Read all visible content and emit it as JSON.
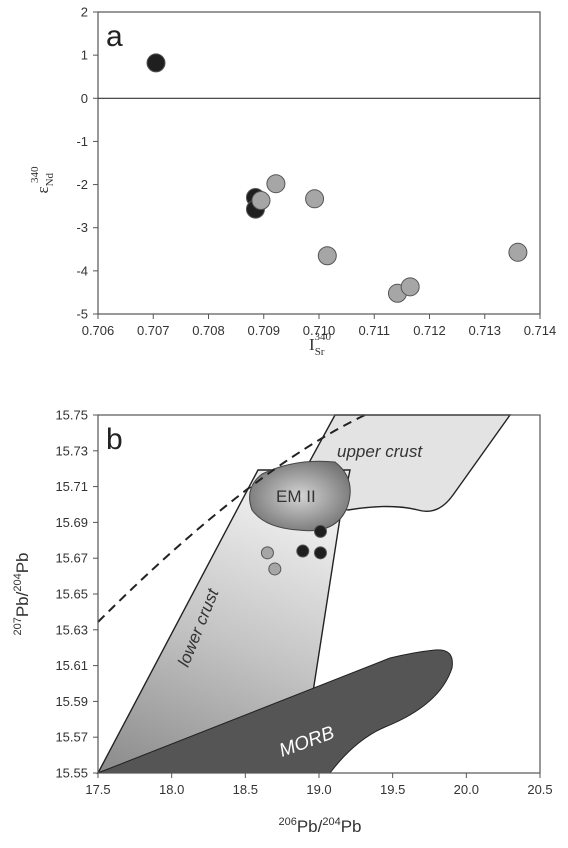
{
  "chart_data": [
    {
      "type": "scatter",
      "panel_label": "a",
      "xlabel": {
        "base": "I",
        "sub": "Sr",
        "sup": "340"
      },
      "ylabel": {
        "base": "ε",
        "sub": "Nd",
        "sup": "340"
      },
      "xlim": [
        0.706,
        0.714
      ],
      "ylim": [
        -5,
        2
      ],
      "xticks": [
        "0.706",
        "0.707",
        "0.708",
        "0.709",
        "0.710",
        "0.711",
        "0.712",
        "0.713",
        "0.714"
      ],
      "yticks": [
        "2",
        "1",
        "0",
        "-1",
        "-2",
        "-3",
        "-4",
        "-5"
      ],
      "reference_line_y": 0,
      "series": [
        {
          "color": "#1f1f1f",
          "points": [
            [
              0.70705,
              0.82
            ],
            [
              0.70885,
              -2.3
            ],
            [
              0.70885,
              -2.57
            ]
          ]
        },
        {
          "color": "#a6a6a6",
          "points": [
            [
              0.70895,
              -2.37
            ],
            [
              0.70922,
              -1.98
            ],
            [
              0.70992,
              -2.33
            ],
            [
              0.71015,
              -3.65
            ],
            [
              0.71142,
              -4.52
            ],
            [
              0.71165,
              -4.37
            ],
            [
              0.7136,
              -3.57
            ]
          ]
        }
      ]
    },
    {
      "type": "scatter",
      "panel_label": "b",
      "xlabel": {
        "sup": "206",
        "base": "Pb/",
        "sup2": "204",
        "base2": "Pb"
      },
      "ylabel": {
        "sup": "207",
        "base": "Pb/",
        "sup2": "204",
        "base2": "Pb"
      },
      "xlim": [
        17.5,
        20.5
      ],
      "ylim": [
        15.55,
        15.75
      ],
      "xticks": [
        "17.5",
        "18.0",
        "18.5",
        "19.0",
        "19.5",
        "20.0",
        "20.5"
      ],
      "yticks": [
        "15.75",
        "15.73",
        "15.71",
        "15.69",
        "15.67",
        "15.65",
        "15.63",
        "15.61",
        "15.59",
        "15.57",
        "15.55"
      ],
      "regions": {
        "upper_crust": "upper crust",
        "em2": "EM II",
        "lower_crust": "lower crust",
        "morb": "MORB"
      },
      "series": [
        {
          "color": "#1f1f1f",
          "points": [
            [
              18.89,
              15.674
            ],
            [
              19.01,
              15.685
            ],
            [
              19.01,
              15.673
            ]
          ]
        },
        {
          "color": "#a6a6a6",
          "points": [
            [
              18.65,
              15.673
            ],
            [
              18.7,
              15.664
            ]
          ]
        }
      ]
    }
  ]
}
